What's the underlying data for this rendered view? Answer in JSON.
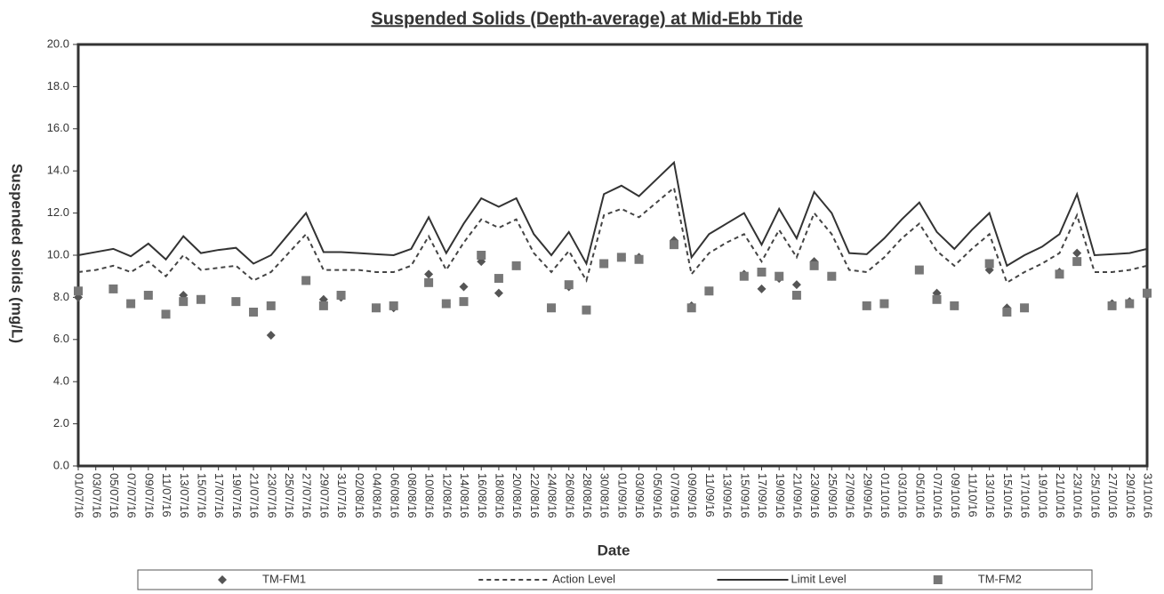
{
  "chart_data": {
    "type": "line",
    "title": "Suspended Solids (Depth-average) at Mid-Ebb Tide",
    "x_label": "Date",
    "y_label": "Suspended solids (mg/L)",
    "categories": [
      "01/07/16",
      "03/07/16",
      "05/07/16",
      "07/07/16",
      "09/07/16",
      "11/07/16",
      "13/07/16",
      "15/07/16",
      "17/07/16",
      "19/07/16",
      "21/07/16",
      "23/07/16",
      "25/07/16",
      "27/07/16",
      "29/07/16",
      "31/07/16",
      "02/08/16",
      "04/08/16",
      "06/08/16",
      "08/08/16",
      "10/08/16",
      "12/08/16",
      "14/08/16",
      "16/08/16",
      "18/08/16",
      "20/08/16",
      "22/08/16",
      "24/08/16",
      "26/08/16",
      "28/08/16",
      "30/08/16",
      "01/09/16",
      "03/09/16",
      "05/09/16",
      "07/09/16",
      "09/09/16",
      "11/09/16",
      "13/09/16",
      "15/09/16",
      "17/09/16",
      "19/09/16",
      "21/09/16",
      "23/09/16",
      "25/09/16",
      "27/09/16",
      "29/09/16",
      "01/10/16",
      "03/10/16",
      "05/10/16",
      "07/10/16",
      "09/10/16",
      "11/10/16",
      "13/10/16",
      "15/10/16",
      "17/10/16",
      "19/10/16",
      "21/10/16",
      "23/10/16",
      "25/10/16",
      "27/10/16",
      "29/10/16",
      "31/10/16"
    ],
    "series": [
      {
        "name": "TM-FM1",
        "kind": "scatter",
        "marker": "diamond",
        "color": "#555555",
        "values": [
          8.0,
          null,
          8.4,
          7.7,
          8.1,
          7.2,
          8.1,
          7.9,
          null,
          7.8,
          7.3,
          6.2,
          null,
          8.8,
          7.9,
          8.0,
          null,
          7.5,
          7.5,
          null,
          9.1,
          7.7,
          8.5,
          9.7,
          8.2,
          9.5,
          null,
          7.5,
          8.5,
          7.4,
          9.6,
          9.9,
          9.9,
          null,
          10.7,
          7.6,
          8.3,
          null,
          9.1,
          8.4,
          8.9,
          8.6,
          9.7,
          9.0,
          null,
          7.6,
          7.7,
          null,
          9.3,
          8.2,
          7.6,
          null,
          9.3,
          7.5,
          7.5,
          null,
          9.2,
          10.1,
          null,
          7.7,
          7.8,
          8.1
        ]
      },
      {
        "name": "Action Level",
        "kind": "line",
        "line_style": "dashed",
        "color": "#444444",
        "values": [
          9.2,
          9.3,
          9.5,
          9.2,
          9.7,
          9.0,
          10.0,
          9.3,
          9.4,
          9.5,
          8.8,
          9.2,
          10.1,
          11.0,
          9.3,
          9.3,
          9.3,
          9.2,
          9.2,
          9.5,
          10.9,
          9.3,
          10.6,
          11.7,
          11.3,
          11.7,
          10.1,
          9.2,
          10.2,
          8.8,
          11.9,
          12.2,
          11.8,
          12.5,
          13.2,
          9.1,
          10.1,
          10.6,
          11.0,
          9.7,
          11.2,
          9.9,
          12.0,
          11.0,
          9.3,
          9.2,
          9.9,
          10.8,
          11.5,
          10.2,
          9.5,
          10.3,
          11.0,
          8.7,
          9.2,
          9.6,
          10.1,
          11.9,
          9.2,
          9.2,
          9.3,
          9.5
        ]
      },
      {
        "name": "Limit Level",
        "kind": "line",
        "line_style": "solid",
        "color": "#333333",
        "values": [
          10.0,
          10.15,
          10.3,
          9.95,
          10.55,
          9.8,
          10.9,
          10.1,
          10.25,
          10.35,
          9.6,
          10.0,
          11.0,
          12.0,
          10.15,
          10.15,
          10.1,
          10.05,
          10.0,
          10.3,
          11.8,
          10.1,
          11.5,
          12.7,
          12.3,
          12.7,
          11.0,
          10.0,
          11.1,
          9.6,
          12.9,
          13.3,
          12.8,
          13.6,
          14.4,
          9.9,
          11.0,
          11.5,
          12.0,
          10.5,
          12.2,
          10.8,
          13.0,
          12.0,
          10.1,
          10.05,
          10.8,
          11.7,
          12.5,
          11.1,
          10.3,
          11.2,
          12.0,
          9.5,
          10.0,
          10.4,
          11.0,
          12.9,
          10.0,
          10.05,
          10.1,
          10.3
        ]
      },
      {
        "name": "TM-FM2",
        "kind": "scatter",
        "marker": "square",
        "color": "#777777",
        "values": [
          8.3,
          null,
          8.4,
          7.7,
          8.1,
          7.2,
          7.8,
          7.9,
          null,
          7.8,
          7.3,
          7.6,
          null,
          8.8,
          7.6,
          8.1,
          null,
          7.5,
          7.6,
          null,
          8.7,
          7.7,
          7.8,
          10.0,
          8.9,
          9.5,
          null,
          7.5,
          8.6,
          7.4,
          9.6,
          9.9,
          9.8,
          null,
          10.5,
          7.5,
          8.3,
          null,
          9.0,
          9.2,
          9.0,
          8.1,
          9.5,
          9.0,
          null,
          7.6,
          7.7,
          null,
          9.3,
          7.9,
          7.6,
          null,
          9.6,
          7.3,
          7.5,
          null,
          9.1,
          9.7,
          null,
          7.6,
          7.7,
          8.2
        ]
      }
    ],
    "ylim": [
      0,
      20
    ],
    "yticks": [
      {
        "value": 0,
        "label": "0.0"
      },
      {
        "value": 2,
        "label": "2.0"
      },
      {
        "value": 4,
        "label": "4.0"
      },
      {
        "value": 6,
        "label": "6.0"
      },
      {
        "value": 8,
        "label": "8.0"
      },
      {
        "value": 10,
        "label": "10.0"
      },
      {
        "value": 12,
        "label": "12.0"
      },
      {
        "value": 14,
        "label": "14.0"
      },
      {
        "value": 16,
        "label": "16.0"
      },
      {
        "value": 18,
        "label": "18.0"
      },
      {
        "value": 20,
        "label": "20.0"
      }
    ],
    "legend": "bottom"
  }
}
